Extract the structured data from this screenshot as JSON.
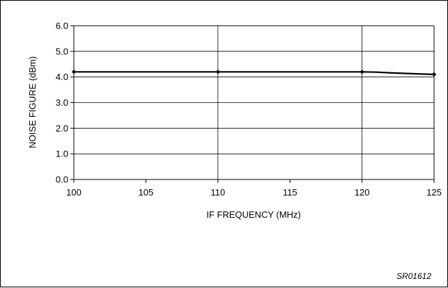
{
  "chart_data": {
    "type": "line",
    "title": "",
    "xlabel": "IF FREQUENCY (MHz)",
    "ylabel": "NOISE FIGURE (dBm)",
    "x_ticks": [
      "100",
      "105",
      "110",
      "115",
      "120",
      "125"
    ],
    "y_ticks": [
      "0.0",
      "1.0",
      "2.0",
      "3.0",
      "4.0",
      "5.0",
      "6.0"
    ],
    "xlim": [
      100,
      125
    ],
    "ylim": [
      0,
      6
    ],
    "grid": true,
    "series": [
      {
        "color": "#000000",
        "x": [
          100,
          105,
          110,
          115,
          120,
          121,
          122,
          123,
          124,
          125
        ],
        "y": [
          4.2,
          4.2,
          4.2,
          4.2,
          4.2,
          4.19,
          4.16,
          4.14,
          4.12,
          4.1
        ],
        "marker_x": [
          100,
          110,
          120,
          125
        ],
        "marker_y": [
          4.2,
          4.2,
          4.2,
          4.1
        ]
      }
    ]
  },
  "figure_code": "SR01612"
}
